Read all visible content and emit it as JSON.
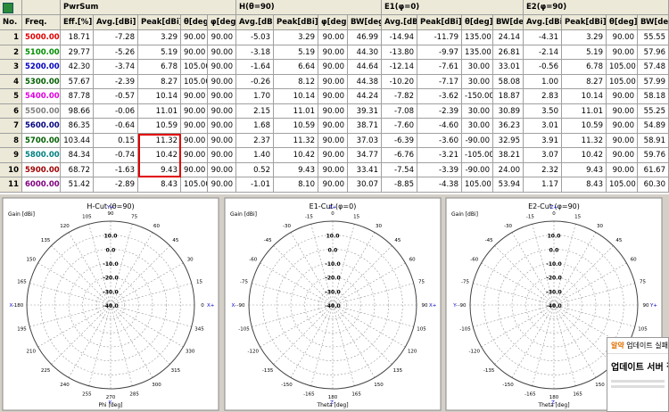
{
  "table": {
    "group_headers": [
      "PwrSum",
      "H(θ=90)",
      "E1(φ=0)",
      "E2(φ=90)"
    ],
    "headers": [
      "No.",
      "Freq.",
      "Eff.[%]",
      "Avg.[dBi]",
      "Peak[dBi]",
      "θ[deg]",
      "φ[deg]",
      "Avg.[dBi]",
      "Peak[dBi]",
      "φ[deg]",
      "BW[deg]",
      "Avg.[dBi]",
      "Peak[dBi]",
      "θ[deg]",
      "BW[deg]",
      "Avg.[dBi]",
      "Peak[dBi]",
      "θ[deg]",
      "BW[deg]"
    ],
    "freq_colors": [
      "#e00000",
      "#009000",
      "#0000c0",
      "#006000",
      "#e000e0",
      "#808080",
      "#000080",
      "#006000",
      "#008080",
      "#a00000",
      "#800080"
    ],
    "rows": [
      [
        "1",
        "5000.000",
        "18.71",
        "-7.28",
        "3.29",
        "90.00",
        "90.00",
        "-5.03",
        "3.29",
        "90.00",
        "46.99",
        "-14.94",
        "-11.79",
        "135.00",
        "24.14",
        "-4.31",
        "3.29",
        "90.00",
        "55.55"
      ],
      [
        "2",
        "5100.000",
        "29.77",
        "-5.26",
        "5.19",
        "90.00",
        "90.00",
        "-3.18",
        "5.19",
        "90.00",
        "44.30",
        "-13.80",
        "-9.97",
        "135.00",
        "26.81",
        "-2.14",
        "5.19",
        "90.00",
        "57.96"
      ],
      [
        "3",
        "5200.000",
        "42.30",
        "-3.74",
        "6.78",
        "105.00",
        "90.00",
        "-1.64",
        "6.64",
        "90.00",
        "44.64",
        "-12.14",
        "-7.61",
        "30.00",
        "33.01",
        "-0.56",
        "6.78",
        "105.00",
        "57.48"
      ],
      [
        "4",
        "5300.000",
        "57.67",
        "-2.39",
        "8.27",
        "105.00",
        "90.00",
        "-0.26",
        "8.12",
        "90.00",
        "44.38",
        "-10.20",
        "-7.17",
        "30.00",
        "58.08",
        "1.00",
        "8.27",
        "105.00",
        "57.99"
      ],
      [
        "5",
        "5400.000",
        "87.78",
        "-0.57",
        "10.14",
        "90.00",
        "90.00",
        "1.70",
        "10.14",
        "90.00",
        "44.24",
        "-7.82",
        "-3.62",
        "-150.00",
        "18.87",
        "2.83",
        "10.14",
        "90.00",
        "58.18"
      ],
      [
        "6",
        "5500.000",
        "98.66",
        "-0.06",
        "11.01",
        "90.00",
        "90.00",
        "2.15",
        "11.01",
        "90.00",
        "39.31",
        "-7.08",
        "-2.39",
        "30.00",
        "30.89",
        "3.50",
        "11.01",
        "90.00",
        "55.25"
      ],
      [
        "7",
        "5600.000",
        "86.35",
        "-0.64",
        "10.59",
        "90.00",
        "90.00",
        "1.68",
        "10.59",
        "90.00",
        "38.71",
        "-7.60",
        "-4.60",
        "30.00",
        "36.23",
        "3.01",
        "10.59",
        "90.00",
        "54.89"
      ],
      [
        "8",
        "5700.000",
        "103.44",
        "0.15",
        "11.32",
        "90.00",
        "90.00",
        "2.37",
        "11.32",
        "90.00",
        "37.03",
        "-6.39",
        "-3.60",
        "-90.00",
        "32.95",
        "3.91",
        "11.32",
        "90.00",
        "58.91"
      ],
      [
        "9",
        "5800.000",
        "84.34",
        "-0.74",
        "10.42",
        "90.00",
        "90.00",
        "1.40",
        "10.42",
        "90.00",
        "34.77",
        "-6.76",
        "-3.21",
        "-105.00",
        "38.21",
        "3.07",
        "10.42",
        "90.00",
        "59.76"
      ],
      [
        "10",
        "5900.000",
        "68.72",
        "-1.63",
        "9.43",
        "90.00",
        "90.00",
        "0.52",
        "9.43",
        "90.00",
        "33.41",
        "-7.54",
        "-3.39",
        "-90.00",
        "24.00",
        "2.32",
        "9.43",
        "90.00",
        "61.67"
      ],
      [
        "11",
        "6000.000",
        "51.42",
        "-2.89",
        "8.43",
        "105.00",
        "90.00",
        "-1.01",
        "8.10",
        "90.00",
        "30.07",
        "-8.85",
        "-4.38",
        "105.00",
        "53.94",
        "1.17",
        "8.43",
        "105.00",
        "60.30"
      ]
    ]
  },
  "plots": [
    {
      "title": "H-Cut (θ=90)",
      "ylabel": "Gain [dBi]",
      "xlabel": "Phi [deg]",
      "rlim": [
        -40,
        20
      ],
      "rticks": [
        {
          "value": 10,
          "label": "10.0"
        },
        {
          "value": 0,
          "label": "0.0"
        },
        {
          "value": -10,
          "label": "-10.0"
        },
        {
          "value": -20,
          "label": "-20.0"
        },
        {
          "value": -30,
          "label": "-30.0"
        },
        {
          "value": -40,
          "label": "-40.0"
        }
      ],
      "angle_labels": [
        "90",
        "75",
        "60",
        "45",
        "30",
        "15",
        "0",
        "345",
        "330",
        "315",
        "300",
        "285",
        "270",
        "255",
        "240",
        "225",
        "210",
        "195",
        "180",
        "165",
        "150",
        "135",
        "120",
        "105"
      ],
      "direction_labels": [
        "Y+",
        "X+",
        "Y-",
        "X-"
      ]
    },
    {
      "title": "E1-Cut (φ=0)",
      "ylabel": "Gain [dBi]",
      "xlabel": "Theta [deg]",
      "rlim": [
        -40,
        20
      ],
      "rticks": [
        {
          "value": 10,
          "label": "10.0"
        },
        {
          "value": 0,
          "label": "0.0"
        },
        {
          "value": -10,
          "label": "-10.0"
        },
        {
          "value": -20,
          "label": "-20.0"
        },
        {
          "value": -30,
          "label": "-30.0"
        },
        {
          "value": -40,
          "label": "-40.0"
        }
      ],
      "angle_labels": [
        "0",
        "15",
        "30",
        "45",
        "60",
        "75",
        "90",
        "105",
        "120",
        "135",
        "150",
        "165",
        "180",
        "-165",
        "-150",
        "-135",
        "-120",
        "-105",
        "-90",
        "-75",
        "-60",
        "-45",
        "-30",
        "-15"
      ],
      "direction_labels": [
        "Z+",
        "X+",
        "Z-",
        "X-"
      ]
    },
    {
      "title": "E2-Cut (φ=90)",
      "ylabel": "Gain [dBi]",
      "xlabel": "Theta [deg]",
      "rlim": [
        -40,
        20
      ],
      "rticks": [
        {
          "value": 10,
          "label": "10.0"
        },
        {
          "value": 0,
          "label": "0.0"
        },
        {
          "value": -10,
          "label": "-10.0"
        },
        {
          "value": -20,
          "label": "-20.0"
        },
        {
          "value": -30,
          "label": "-30.0"
        },
        {
          "value": -40,
          "label": "-40.0"
        }
      ],
      "angle_labels": [
        "0",
        "15",
        "30",
        "45",
        "60",
        "75",
        "90",
        "105",
        "120",
        "135",
        "150",
        "165",
        "180",
        "-165",
        "-150",
        "-135",
        "-120",
        "-105",
        "-90",
        "-75",
        "-60",
        "-45",
        "-30",
        "-15"
      ],
      "direction_labels": [
        "Z+",
        "Y+",
        "Z-",
        "Y-"
      ]
    }
  ],
  "popup": {
    "brand": "알약",
    "title": "업데이트 실패 안",
    "message": "업데이트 서버 접"
  }
}
